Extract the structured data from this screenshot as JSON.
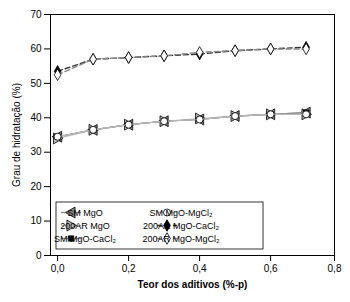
{
  "chart_data": {
    "type": "line",
    "x": [
      0.0,
      0.1,
      0.2,
      0.3,
      0.4,
      0.5,
      0.6,
      0.7
    ],
    "series": [
      {
        "name": "SM MgO",
        "color": "#888888",
        "marker": "triangle-left",
        "line_style": "solid",
        "values": [
          34.5,
          36.5,
          38.0,
          39.0,
          39.5,
          40.5,
          41.0,
          41.5
        ]
      },
      {
        "name": "200AR MgO",
        "color": "#bbbbbb",
        "marker": "triangle-right",
        "line_style": "solid",
        "values": [
          34.0,
          36.5,
          38.0,
          39.0,
          39.8,
          40.5,
          41.0,
          41.0
        ]
      },
      {
        "name": "SM MgO-CaCl₂",
        "color": "#888888",
        "marker": "square",
        "line_style": "solid",
        "values": [
          34.5,
          36.5,
          38.0,
          39.0,
          39.5,
          40.5,
          41.0,
          41.5
        ]
      },
      {
        "name": "SM MgO-MgCl₂",
        "color": "#bbbbbb",
        "marker": "circle-open",
        "line_style": "solid",
        "values": [
          34.5,
          36.5,
          38.0,
          39.0,
          39.5,
          40.5,
          41.0,
          41.0
        ]
      },
      {
        "name": "200AR MgO-CaCl₂",
        "color": "#333333",
        "marker": "diamond",
        "line_style": "dashed",
        "values": [
          53.5,
          57.0,
          57.5,
          58.0,
          58.5,
          59.5,
          60.0,
          60.5
        ]
      },
      {
        "name": "200AR MgO-MgCl₂",
        "color": "#888888",
        "marker": "diamond-open",
        "line_style": "dashed",
        "values": [
          52.5,
          57.0,
          57.5,
          58.0,
          59.0,
          59.5,
          60.0,
          60.0
        ]
      }
    ],
    "xlabel": "Teor dos aditivos (%-p)",
    "ylabel": "Grau de hidratação (%)",
    "xlim": [
      -0.02,
      0.78
    ],
    "ylim": [
      0,
      70
    ],
    "xticks": [
      {
        "value": 0.0,
        "label": "0,0"
      },
      {
        "value": 0.2,
        "label": "0,2"
      },
      {
        "value": 0.4,
        "label": "0,4"
      },
      {
        "value": 0.6,
        "label": "0,6"
      },
      {
        "value": 0.78,
        "label": "0,8"
      }
    ],
    "yticks": [
      0,
      10,
      20,
      30,
      40,
      50,
      60,
      70
    ],
    "grid": false,
    "legend": "lower left"
  }
}
